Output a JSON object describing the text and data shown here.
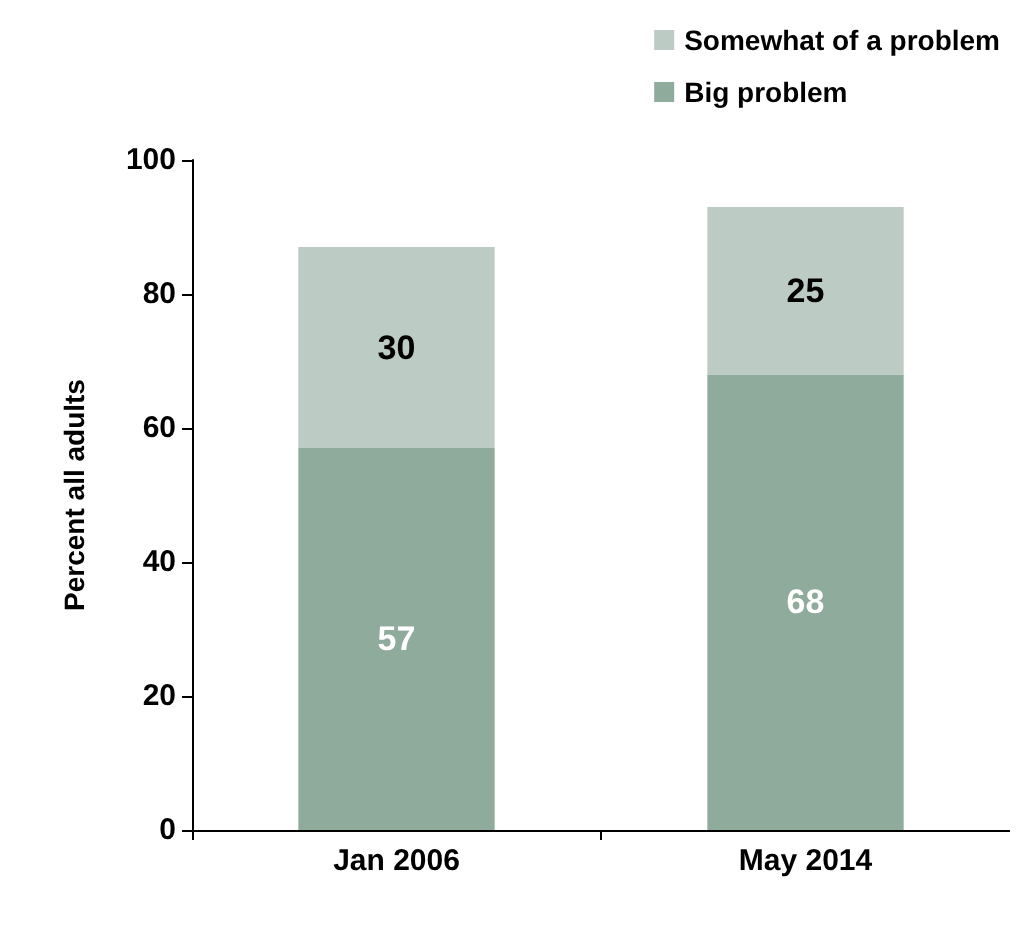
{
  "chart_data": {
    "type": "bar",
    "stacked": true,
    "ylabel": "Percent all adults",
    "categories": [
      "Jan 2006",
      "May 2014"
    ],
    "series": [
      {
        "name": "Big problem",
        "color": "#8fab9b",
        "values": [
          57,
          68
        ]
      },
      {
        "name": "Somewhat of a problem",
        "color": "#bccbc3",
        "values": [
          30,
          25
        ]
      }
    ],
    "ylim": [
      0,
      100
    ],
    "yticks": [
      0,
      20,
      40,
      60,
      80,
      100
    ],
    "data_labels": true,
    "legend": "top right",
    "grid": false
  }
}
